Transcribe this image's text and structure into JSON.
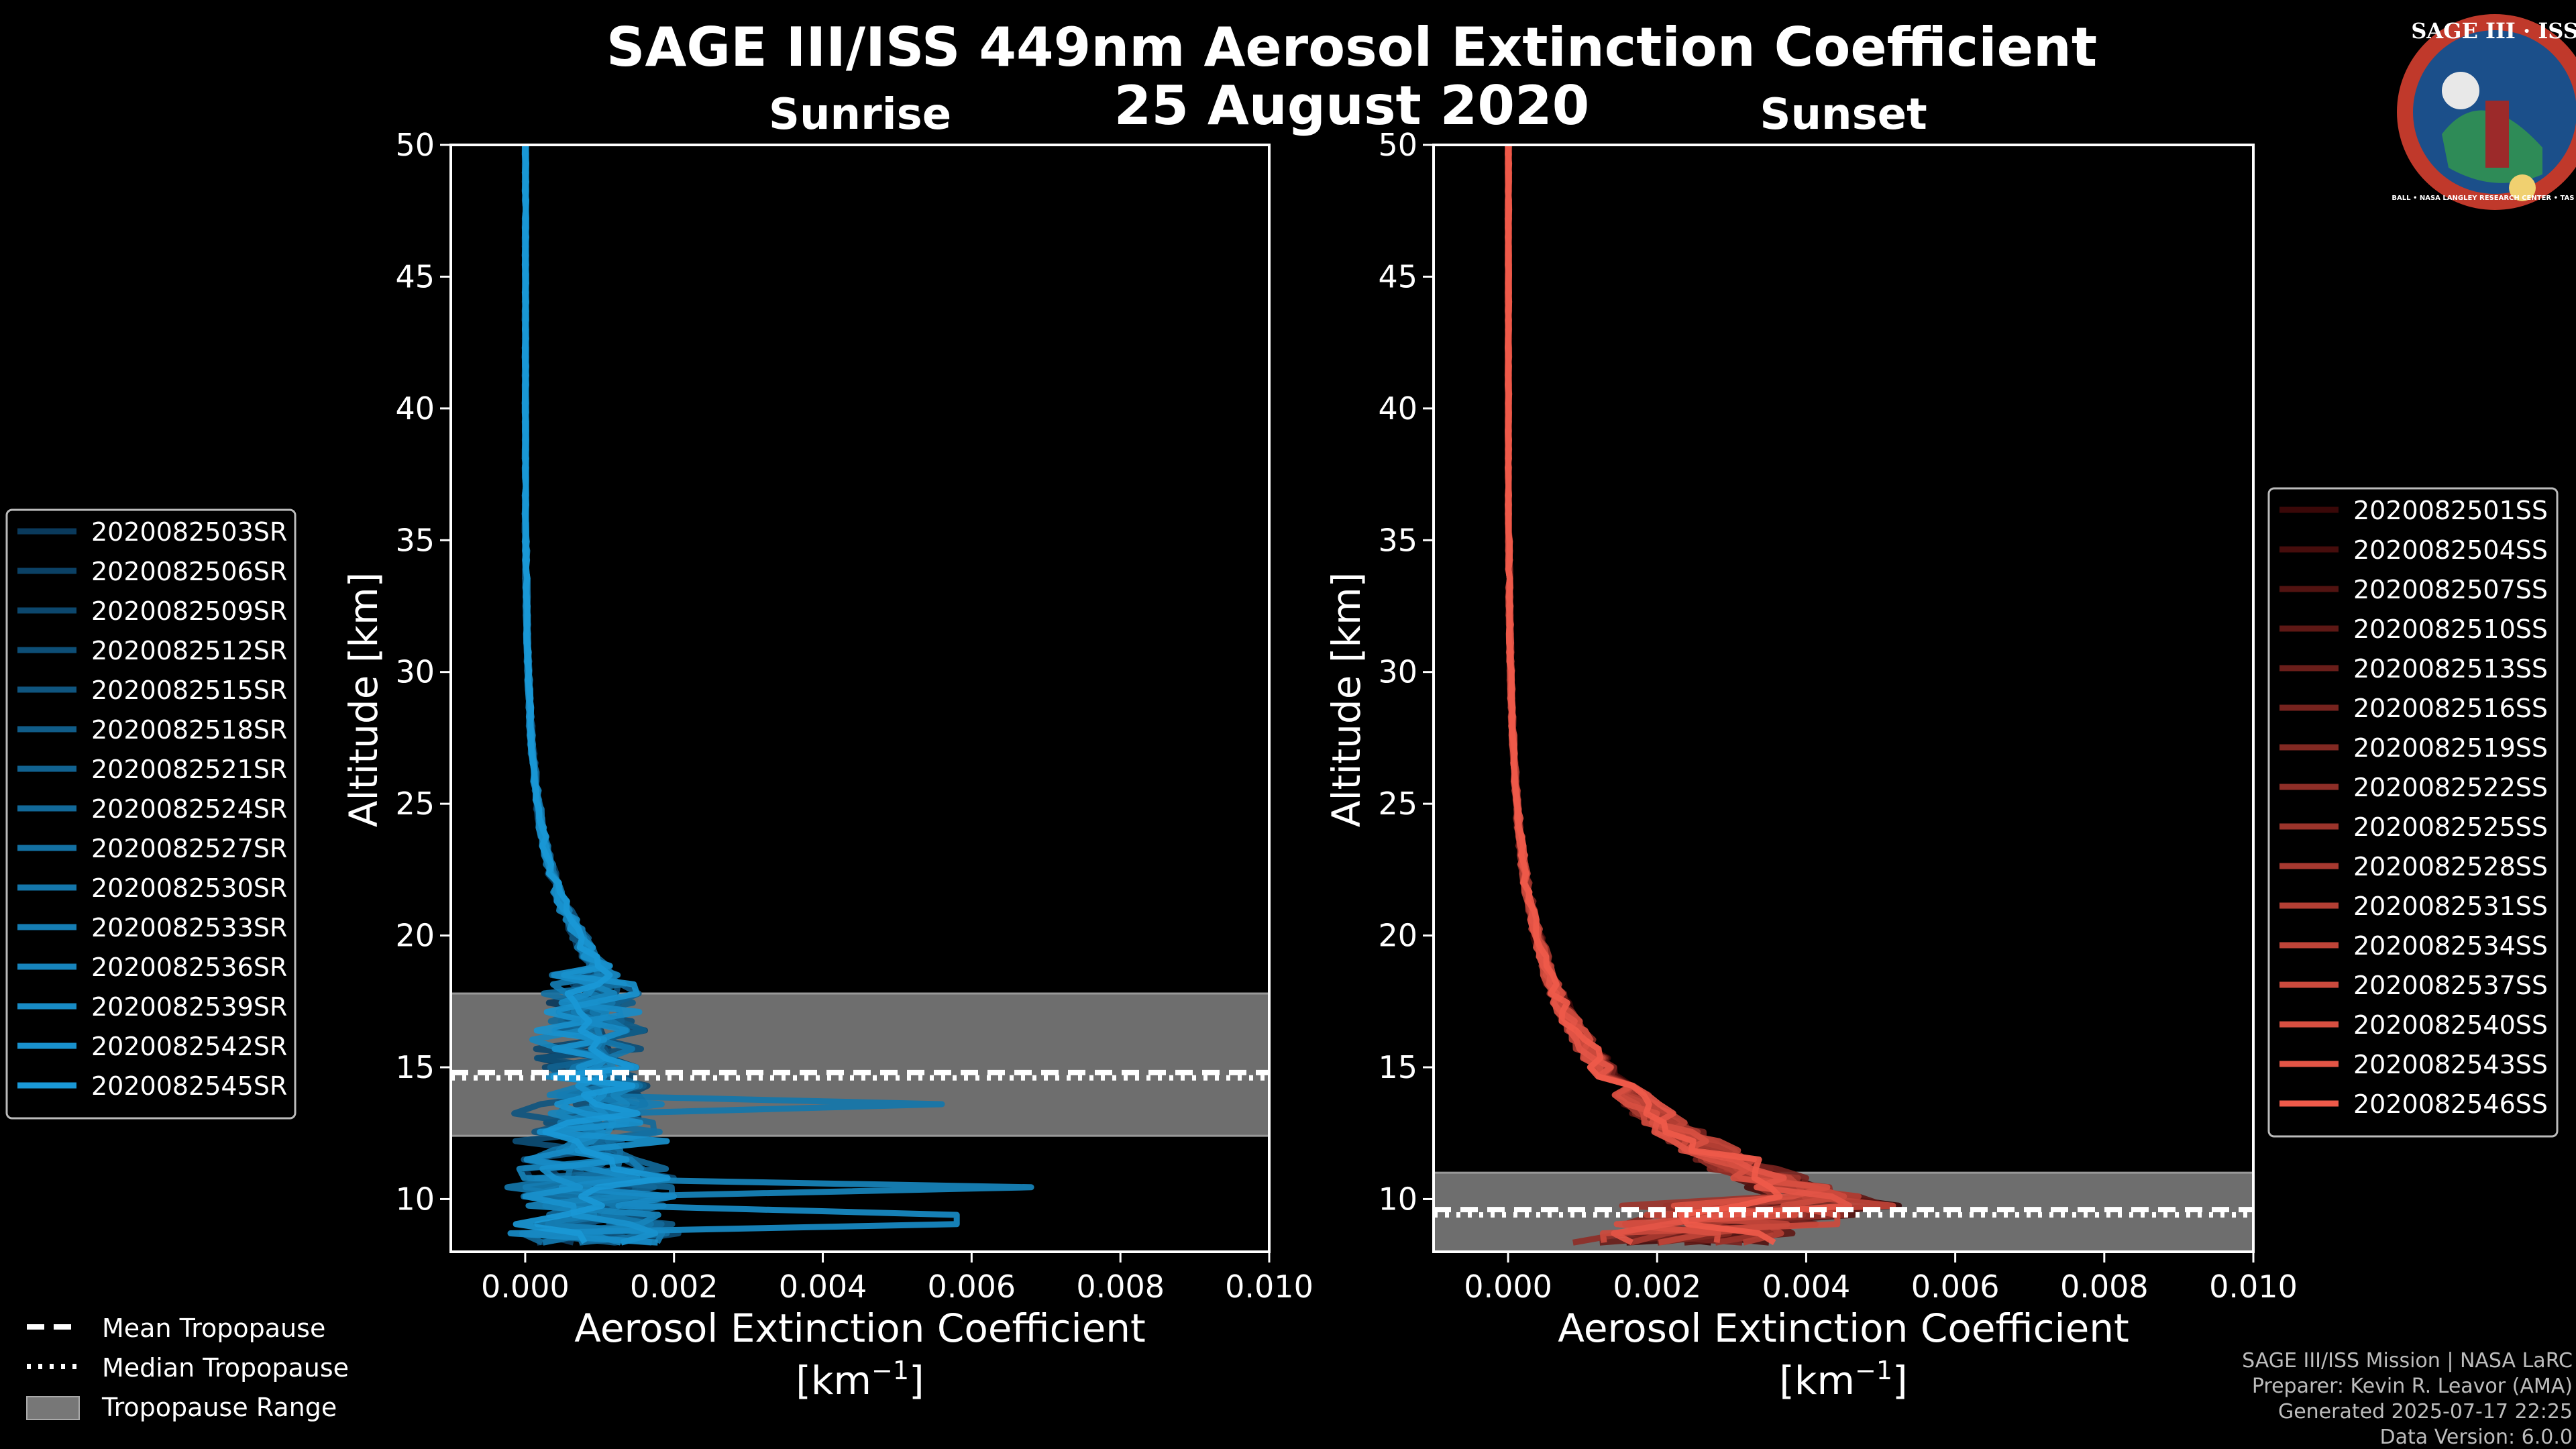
{
  "title": "SAGE III/ISS 449nm Aerosol Extinction Coefficient",
  "date": "25 August 2020",
  "logo": {
    "text_top": "SAGE III · ISS",
    "text_ring": "BALL • NASA LANGLEY RESEARCH CENTER • TAS • ESA",
    "colors": {
      "ring": "#c0392b",
      "field": "#1b4f8a",
      "moon": "#e8e8e8"
    }
  },
  "credits": [
    "SAGE III/ISS Mission | NASA LaRC",
    "Preparer: Kevin R. Leavor (AMA)",
    "Generated 2025-07-17 22:25",
    "Data Version: 6.0.0"
  ],
  "tropo_legend": {
    "mean": "Mean Tropopause",
    "median": "Median Tropopause",
    "range": "Tropopause Range"
  },
  "chart_data": [
    {
      "id": "sunrise",
      "type": "line",
      "subtitle": "Sunrise",
      "xlabel": "Aerosol Extinction Coefficient",
      "xunit_base": "[km",
      "xunit_exp": "−1",
      "xunit_close": "]",
      "ylabel": "Altitude [km]",
      "xlim": [
        -0.001,
        0.01
      ],
      "ylim": [
        8,
        50
      ],
      "xticks": [
        0.0,
        0.002,
        0.004,
        0.006,
        0.008,
        0.01
      ],
      "xtick_labels": [
        "0.000",
        "0.002",
        "0.004",
        "0.006",
        "0.008",
        "0.010"
      ],
      "yticks": [
        10,
        15,
        20,
        25,
        30,
        35,
        40,
        45,
        50
      ],
      "ytick_labels": [
        "10",
        "15",
        "20",
        "25",
        "30",
        "35",
        "40",
        "45",
        "50"
      ],
      "tropopause": {
        "range": [
          12.4,
          17.8
        ],
        "mean": 14.8,
        "median": 14.6
      },
      "legend_loc": "left",
      "series_color_start": "#0a3a5c",
      "series_color_end": "#1a98d6",
      "series": [
        {
          "name": "2020082503SR",
          "seed": 3
        },
        {
          "name": "2020082506SR",
          "seed": 6
        },
        {
          "name": "2020082509SR",
          "seed": 9
        },
        {
          "name": "2020082512SR",
          "seed": 12
        },
        {
          "name": "2020082515SR",
          "seed": 15
        },
        {
          "name": "2020082518SR",
          "seed": 18
        },
        {
          "name": "2020082521SR",
          "seed": 21
        },
        {
          "name": "2020082524SR",
          "seed": 24
        },
        {
          "name": "2020082527SR",
          "seed": 27
        },
        {
          "name": "2020082530SR",
          "seed": 30,
          "spike": [
            13.5,
            0.0056
          ]
        },
        {
          "name": "2020082533SR",
          "seed": 33
        },
        {
          "name": "2020082536SR",
          "seed": 36,
          "spike": [
            10.3,
            0.0068
          ]
        },
        {
          "name": "2020082539SR",
          "seed": 39,
          "spike": [
            9.2,
            0.0058
          ]
        },
        {
          "name": "2020082542SR",
          "seed": 42
        },
        {
          "name": "2020082545SR",
          "seed": 45
        }
      ],
      "profile": {
        "base_alt": 18.5,
        "peak": 0.0011,
        "scale": 3.5,
        "low_noise": 0.0016
      }
    },
    {
      "id": "sunset",
      "type": "line",
      "subtitle": "Sunset",
      "xlabel": "Aerosol Extinction Coefficient",
      "xunit_base": "[km",
      "xunit_exp": "−1",
      "xunit_close": "]",
      "ylabel": "Altitude [km]",
      "xlim": [
        -0.001,
        0.01
      ],
      "ylim": [
        8,
        50
      ],
      "xticks": [
        0.0,
        0.002,
        0.004,
        0.006,
        0.008,
        0.01
      ],
      "xtick_labels": [
        "0.000",
        "0.002",
        "0.004",
        "0.006",
        "0.008",
        "0.010"
      ],
      "yticks": [
        10,
        15,
        20,
        25,
        30,
        35,
        40,
        45,
        50
      ],
      "ytick_labels": [
        "10",
        "15",
        "20",
        "25",
        "30",
        "35",
        "40",
        "45",
        "50"
      ],
      "tropopause": {
        "range": [
          8.0,
          11.0
        ],
        "mean": 9.6,
        "median": 9.4
      },
      "legend_loc": "right",
      "series_color_start": "#3a0808",
      "series_color_end": "#ef5a4a",
      "series": [
        {
          "name": "2020082501SS",
          "seed": 1
        },
        {
          "name": "2020082504SS",
          "seed": 4
        },
        {
          "name": "2020082507SS",
          "seed": 7
        },
        {
          "name": "2020082510SS",
          "seed": 10
        },
        {
          "name": "2020082513SS",
          "seed": 13
        },
        {
          "name": "2020082516SS",
          "seed": 16
        },
        {
          "name": "2020082519SS",
          "seed": 19
        },
        {
          "name": "2020082522SS",
          "seed": 22
        },
        {
          "name": "2020082525SS",
          "seed": 25
        },
        {
          "name": "2020082528SS",
          "seed": 28
        },
        {
          "name": "2020082531SS",
          "seed": 31
        },
        {
          "name": "2020082534SS",
          "seed": 34
        },
        {
          "name": "2020082537SS",
          "seed": 37
        },
        {
          "name": "2020082540SS",
          "seed": 40
        },
        {
          "name": "2020082543SS",
          "seed": 43
        },
        {
          "name": "2020082546SS",
          "seed": 46
        }
      ],
      "profile": {
        "base_alt": 10.0,
        "peak": 0.0042,
        "scale": 4.2,
        "low_noise": 0.0012
      }
    }
  ]
}
